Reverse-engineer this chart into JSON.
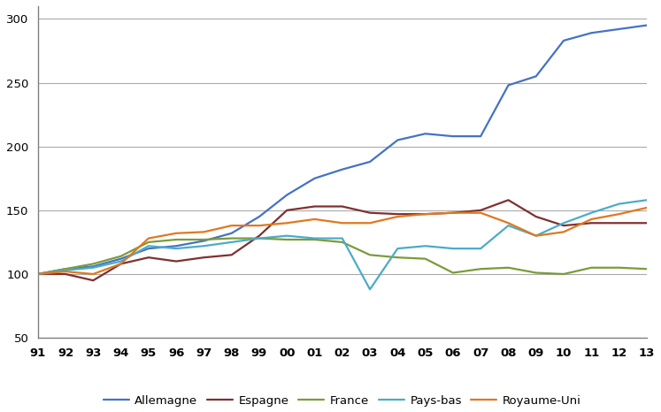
{
  "years": [
    1991,
    1992,
    1993,
    1994,
    1995,
    1996,
    1997,
    1998,
    1999,
    2000,
    2001,
    2002,
    2003,
    2004,
    2005,
    2006,
    2007,
    2008,
    2009,
    2010,
    2011,
    2012,
    2013
  ],
  "year_labels": [
    "91",
    "92",
    "93",
    "94",
    "95",
    "96",
    "97",
    "98",
    "99",
    "00",
    "01",
    "02",
    "03",
    "04",
    "05",
    "06",
    "07",
    "08",
    "09",
    "10",
    "11",
    "12",
    "13"
  ],
  "series": {
    "Allemagne": [
      100,
      104,
      106,
      112,
      120,
      122,
      126,
      132,
      145,
      162,
      175,
      182,
      188,
      205,
      210,
      208,
      208,
      248,
      255,
      283,
      289,
      292,
      295
    ],
    "Espagne": [
      100,
      100,
      95,
      108,
      113,
      110,
      113,
      115,
      130,
      150,
      153,
      153,
      148,
      147,
      147,
      148,
      150,
      158,
      145,
      138,
      140,
      140,
      140
    ],
    "France": [
      100,
      104,
      108,
      114,
      125,
      127,
      127,
      128,
      128,
      127,
      127,
      125,
      115,
      113,
      112,
      101,
      104,
      105,
      101,
      100,
      105,
      105,
      104
    ],
    "Pays-bas": [
      100,
      103,
      105,
      110,
      122,
      120,
      122,
      125,
      128,
      130,
      128,
      128,
      88,
      120,
      122,
      120,
      120,
      138,
      130,
      140,
      148,
      155,
      158
    ],
    "Royaume-Uni": [
      100,
      102,
      100,
      108,
      128,
      132,
      133,
      138,
      138,
      140,
      143,
      140,
      140,
      145,
      147,
      148,
      148,
      140,
      130,
      133,
      143,
      147,
      152
    ]
  },
  "colors": {
    "Allemagne": "#4472C4",
    "Espagne": "#7F3030",
    "France": "#7B9B3A",
    "Pays-bas": "#4BACC6",
    "Royaume-Uni": "#E07820"
  },
  "ylim": [
    50,
    310
  ],
  "yticks": [
    50,
    100,
    150,
    200,
    250,
    300
  ],
  "background_color": "#FFFFFF",
  "plot_bg": "#FFFFFF",
  "grid_color": "#AAAAAA",
  "border_color": "#808080"
}
